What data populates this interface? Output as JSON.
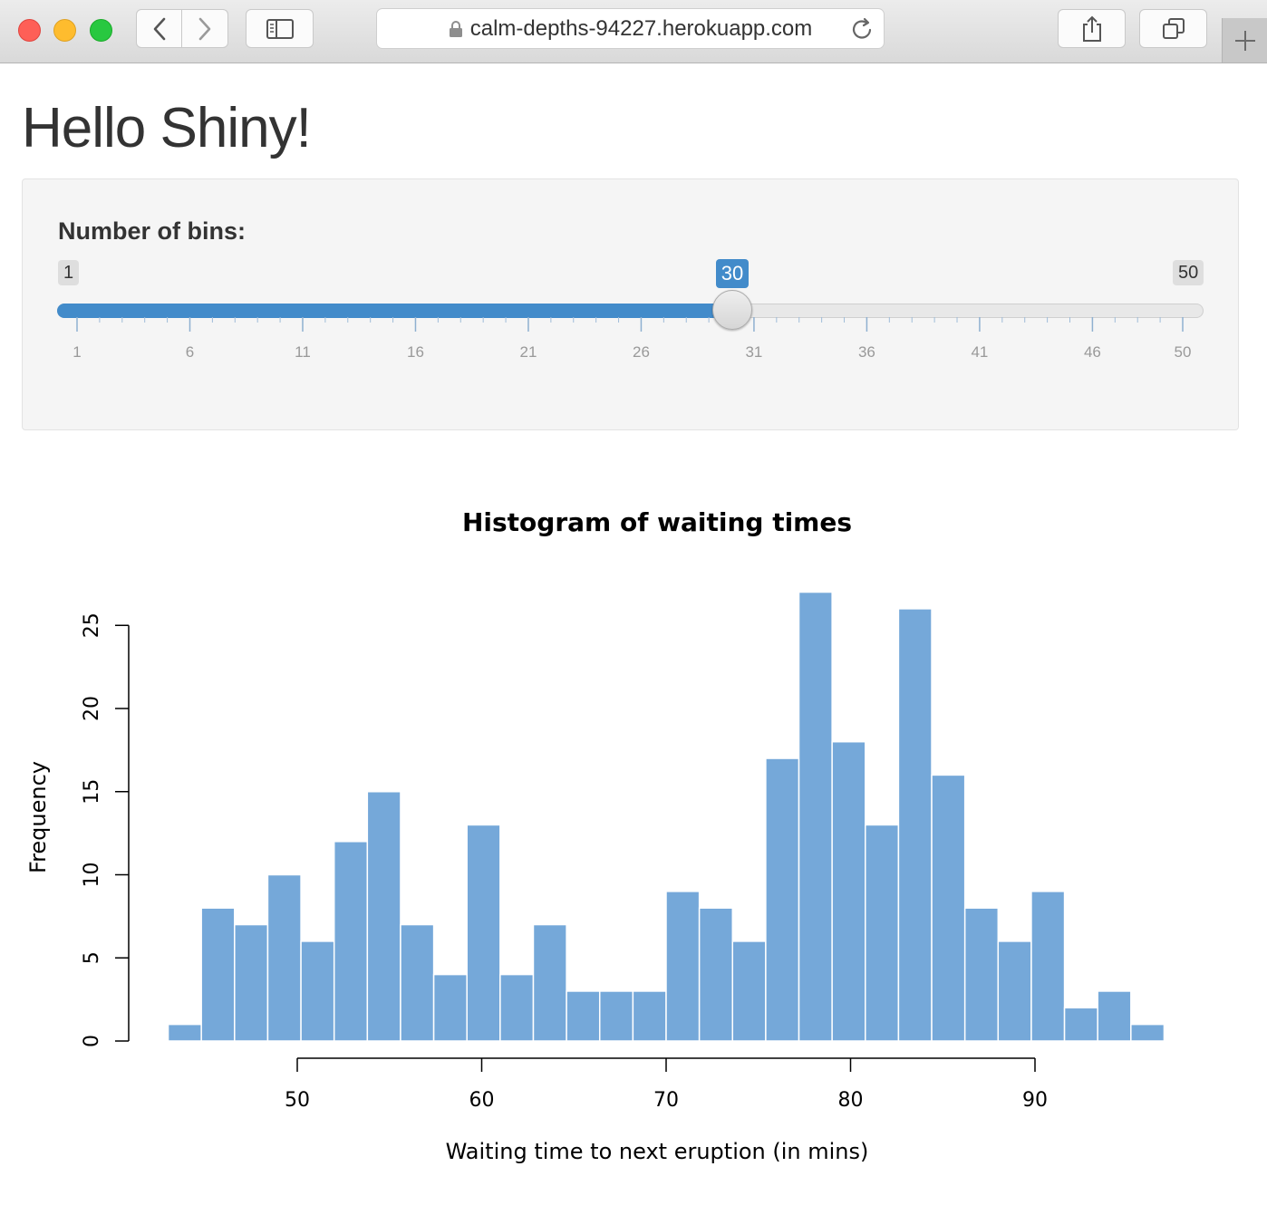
{
  "browser": {
    "url": "calm-depths-94227.herokuapp.com"
  },
  "page": {
    "title": "Hello Shiny!"
  },
  "slider": {
    "label": "Number of bins:",
    "min": "1",
    "max": "50",
    "value": "30",
    "tick_labels": [
      "1",
      "6",
      "11",
      "16",
      "21",
      "26",
      "31",
      "36",
      "41",
      "46",
      "50"
    ],
    "accent_color": "#428bca"
  },
  "chart_data": {
    "type": "bar",
    "title": "Histogram of waiting times",
    "xlabel": "Waiting time to next eruption (in mins)",
    "ylabel": "Frequency",
    "bin_edges": [
      43,
      44.8,
      46.6,
      48.4,
      50.2,
      52,
      53.8,
      55.6,
      57.4,
      59.2,
      61,
      62.8,
      64.6,
      66.4,
      68.2,
      70,
      71.8,
      73.6,
      75.4,
      77.2,
      79,
      80.8,
      82.6,
      84.4,
      86.2,
      88,
      89.8,
      91.6,
      93.4,
      95.2,
      97
    ],
    "values": [
      1,
      8,
      7,
      10,
      6,
      12,
      15,
      7,
      4,
      13,
      4,
      7,
      3,
      3,
      3,
      9,
      8,
      6,
      17,
      27,
      18,
      13,
      26,
      16,
      8,
      6,
      9,
      2,
      3,
      1
    ],
    "x_ticks": [
      50,
      60,
      70,
      80,
      90
    ],
    "y_ticks": [
      0,
      5,
      10,
      15,
      20,
      25
    ],
    "bar_color": "#75a8d9",
    "grid": false
  }
}
